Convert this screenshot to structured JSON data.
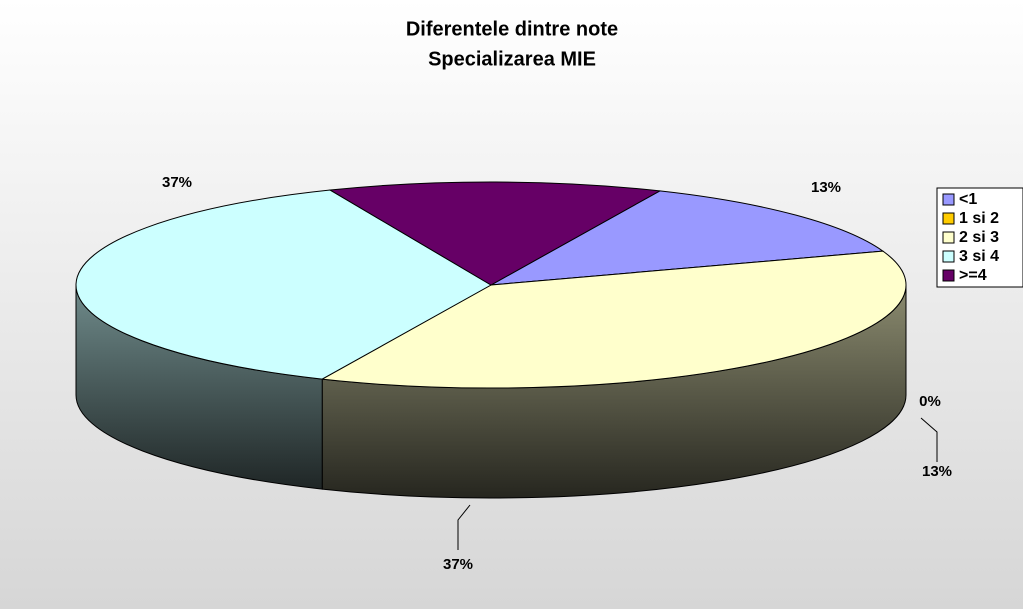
{
  "chart_data": {
    "type": "pie3d",
    "title": "Diferentele dintre note",
    "subtitle": "Specializarea MIE",
    "categories": [
      "<1",
      "1 si 2",
      "2 si 3",
      "3 si 4",
      ">=4"
    ],
    "values": [
      13,
      0,
      37,
      37,
      13
    ],
    "value_labels": [
      "13%",
      "0%",
      "37%",
      "37%",
      "13%"
    ],
    "colors": [
      "#9999ff",
      "#ffcc00",
      "#ffffcc",
      "#ccffff",
      "#660066"
    ],
    "legend": "right"
  }
}
